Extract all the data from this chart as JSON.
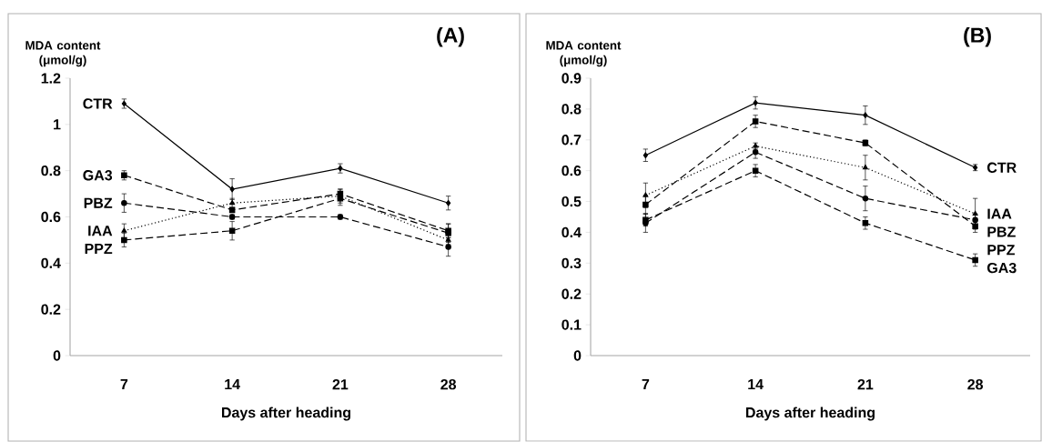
{
  "chart_data": [
    {
      "type": "line",
      "title": "(A)",
      "ylabel": "MDA content (μmol/g)",
      "xlabel": "Days after heading",
      "categories": [
        "7",
        "14",
        "21",
        "28"
      ],
      "ylim": [
        0,
        1.2
      ],
      "yticks": [
        0,
        0.2,
        0.4,
        0.6,
        0.8,
        1,
        1.2
      ],
      "series": [
        {
          "name": "CTR",
          "color": "#000000",
          "values": [
            1.09,
            0.72,
            0.81,
            0.66
          ],
          "errors": [
            0.02,
            0.045,
            0.02,
            0.03
          ],
          "marker": "diamond",
          "line_style": "solid"
        },
        {
          "name": "GA3",
          "color": "#000000",
          "values": [
            0.78,
            0.63,
            0.7,
            0.54
          ],
          "errors": [
            0.02,
            0.01,
            0.02,
            0.03
          ],
          "marker": "square",
          "line_style": "dashed"
        },
        {
          "name": "PBZ",
          "color": "#000000",
          "values": [
            0.66,
            0.6,
            0.6,
            0.47
          ],
          "errors": [
            0.04,
            0.01,
            0.01,
            0.04
          ],
          "marker": "circle",
          "line_style": "dashed"
        },
        {
          "name": "IAA",
          "color": "#000000",
          "values": [
            0.54,
            0.66,
            0.69,
            0.5
          ],
          "errors": [
            0.03,
            0.02,
            0.03,
            0.02
          ],
          "marker": "triangle",
          "line_style": "dotted"
        },
        {
          "name": "PPZ",
          "color": "#000000",
          "values": [
            0.5,
            0.54,
            0.68,
            0.53
          ],
          "errors": [
            0.03,
            0.04,
            0.03,
            0.04
          ],
          "marker": "square",
          "line_style": "dashed"
        }
      ]
    },
    {
      "type": "line",
      "title": "(B)",
      "ylabel": "MDA content (μmol/g)",
      "xlabel": "Days after heading",
      "categories": [
        "7",
        "14",
        "21",
        "28"
      ],
      "ylim": [
        0,
        0.9
      ],
      "yticks": [
        0,
        0.1,
        0.2,
        0.3,
        0.4,
        0.5,
        0.6,
        0.7,
        0.8,
        0.9
      ],
      "series": [
        {
          "name": "CTR",
          "color": "#000000",
          "values": [
            0.65,
            0.82,
            0.78,
            0.61
          ],
          "errors": [
            0.02,
            0.02,
            0.03,
            0.01
          ],
          "marker": "diamond",
          "line_style": "solid"
        },
        {
          "name": "GA3",
          "color": "#000000",
          "values": [
            0.44,
            0.6,
            0.43,
            0.31
          ],
          "errors": [
            0.02,
            0.02,
            0.02,
            0.02
          ],
          "marker": "square",
          "line_style": "dashed"
        },
        {
          "name": "PBZ",
          "color": "#000000",
          "values": [
            0.43,
            0.66,
            0.51,
            0.44
          ],
          "errors": [
            0.03,
            0.02,
            0.04,
            0.02
          ],
          "marker": "circle",
          "line_style": "dashed"
        },
        {
          "name": "IAA",
          "color": "#000000",
          "values": [
            0.52,
            0.68,
            0.61,
            0.46
          ],
          "errors": [
            0.04,
            0.01,
            0.04,
            0.05
          ],
          "marker": "triangle",
          "line_style": "dotted"
        },
        {
          "name": "PPZ",
          "color": "#000000",
          "values": [
            0.49,
            0.76,
            0.69,
            0.42
          ],
          "errors": [
            0.03,
            0.02,
            0.01,
            0.02
          ],
          "marker": "square",
          "line_style": "dashed"
        }
      ]
    }
  ]
}
